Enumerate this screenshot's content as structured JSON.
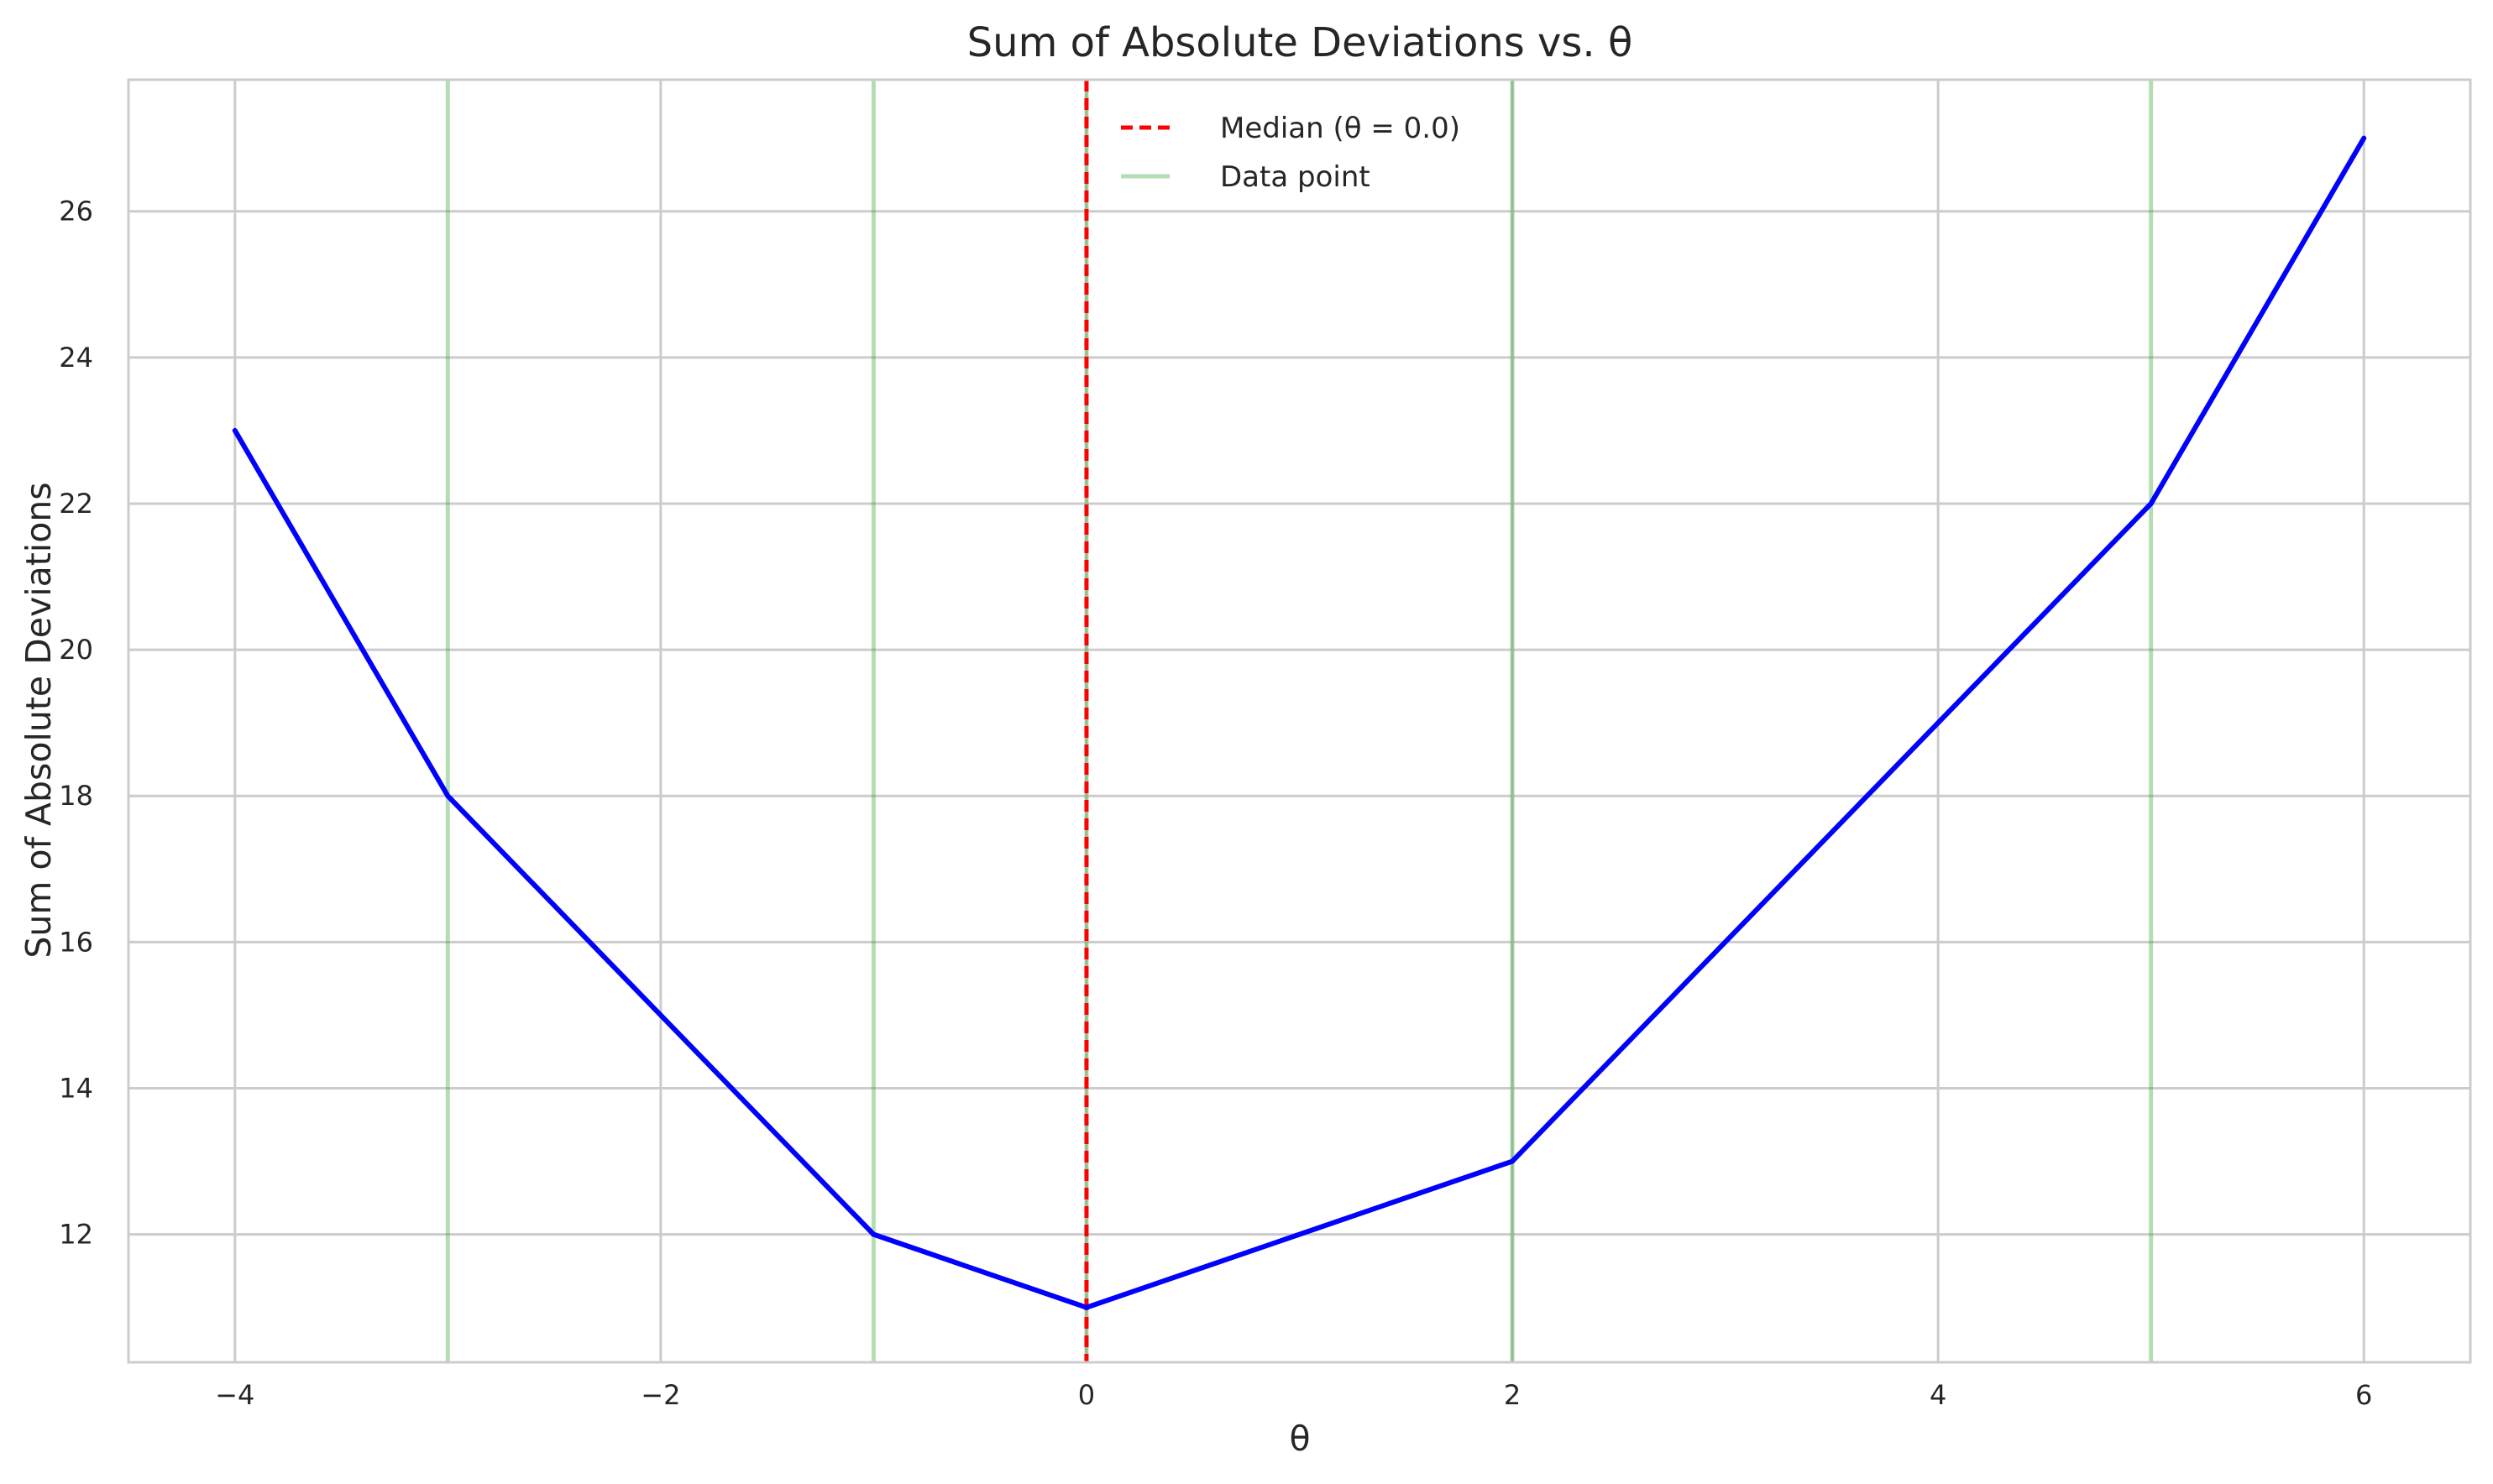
{
  "chart_data": {
    "type": "line",
    "title": "Sum of Absolute Deviations vs. θ",
    "xlabel": "θ",
    "ylabel": "Sum of Absolute Deviations",
    "xlim": [
      -4.5,
      6.5
    ],
    "ylim": [
      10.25,
      27.8
    ],
    "xticks": [
      -4,
      -2,
      0,
      2,
      4,
      6
    ],
    "xtick_labels": [
      "−4",
      "−2",
      "0",
      "2",
      "4",
      "6"
    ],
    "yticks": [
      12,
      14,
      16,
      18,
      20,
      22,
      24,
      26
    ],
    "ytick_labels": [
      "12",
      "14",
      "16",
      "18",
      "20",
      "22",
      "24",
      "26"
    ],
    "grid": true,
    "legend_position": "top-center",
    "series": [
      {
        "name": "",
        "color": "#0000ff",
        "x": [
          -4,
          -3,
          -1,
          0,
          2,
          5,
          6
        ],
        "y": [
          23,
          18,
          12,
          11,
          13,
          22,
          27
        ]
      }
    ],
    "vlines": [
      {
        "x": -3,
        "color": "#2ca02c",
        "style": "solid",
        "legend": false
      },
      {
        "x": -1,
        "color": "#2ca02c",
        "style": "solid",
        "legend": false
      },
      {
        "x": 0,
        "color": "#2ca02c",
        "style": "solid",
        "legend": false
      },
      {
        "x": 2,
        "color": "#2ca02c",
        "style": "solid",
        "legend": false
      },
      {
        "x": 5,
        "color": "#2ca02c",
        "style": "solid",
        "legend": false
      },
      {
        "x": 0,
        "color": "#ff0000",
        "style": "dashed",
        "legend": false
      }
    ],
    "legend": [
      {
        "label": "Median (θ = 0.0)",
        "color": "#ff0000",
        "style": "dashed"
      },
      {
        "label": "Data point",
        "color": "#2ca02c",
        "style": "solid"
      }
    ]
  }
}
